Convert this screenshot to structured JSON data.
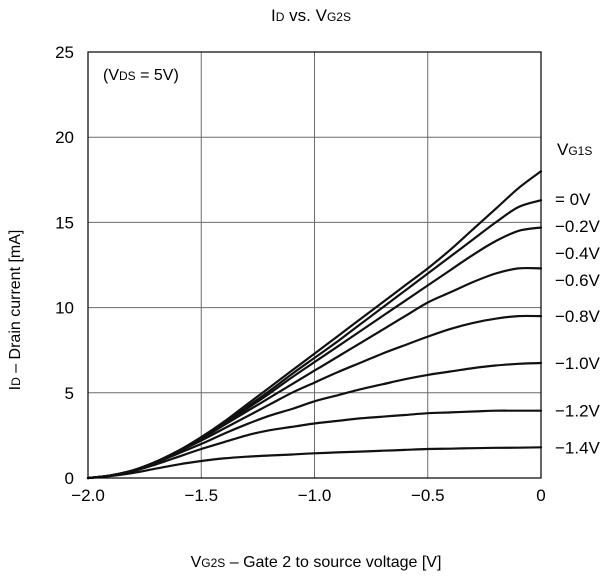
{
  "chart_data": {
    "type": "line",
    "title": {
      "main": "I",
      "sub": "D",
      "rest": " vs. V",
      "sub2": "G2S"
    },
    "annotation": {
      "open": "(V",
      "sub": "DS",
      "rest": " = 5V)"
    },
    "xlabel": {
      "main": "V",
      "sub": "G2S",
      "rest": " – Gate 2 to source voltage [V]"
    },
    "ylabel": {
      "main": "I",
      "sub": "D",
      "rest": " – Drain current [mA]"
    },
    "xlim": [
      -2.0,
      0
    ],
    "ylim": [
      0,
      25
    ],
    "xticks": [
      {
        "value": -2.0,
        "label": "−2.0"
      },
      {
        "value": -1.5,
        "label": "−1.5"
      },
      {
        "value": -1.0,
        "label": "−1.0"
      },
      {
        "value": -0.5,
        "label": "−0.5"
      },
      {
        "value": 0,
        "label": "0"
      }
    ],
    "yticks": [
      {
        "value": 0,
        "label": "0"
      },
      {
        "value": 5,
        "label": "5"
      },
      {
        "value": 10,
        "label": "10"
      },
      {
        "value": 15,
        "label": "15"
      },
      {
        "value": 20,
        "label": "20"
      },
      {
        "value": 25,
        "label": "25"
      }
    ],
    "grid": true,
    "legend_header": {
      "main": "V",
      "sub": "G1S"
    },
    "x": [
      -2.0,
      -1.9,
      -1.8,
      -1.7,
      -1.6,
      -1.5,
      -1.4,
      -1.3,
      -1.2,
      -1.1,
      -1.0,
      -0.9,
      -0.8,
      -0.7,
      -0.6,
      -0.5,
      -0.4,
      -0.3,
      -0.2,
      -0.1,
      0.0
    ],
    "series": [
      {
        "name": "= 0V",
        "values": [
          0.0,
          0.15,
          0.45,
          0.95,
          1.6,
          2.4,
          3.3,
          4.3,
          5.3,
          6.3,
          7.3,
          8.3,
          9.3,
          10.3,
          11.3,
          12.3,
          13.4,
          14.6,
          15.8,
          17.0,
          18.0
        ]
      },
      {
        "name": "−0.2V",
        "values": [
          0.0,
          0.15,
          0.45,
          0.95,
          1.6,
          2.35,
          3.2,
          4.15,
          5.1,
          6.1,
          7.05,
          8.0,
          9.0,
          10.0,
          11.0,
          12.0,
          13.0,
          14.0,
          15.0,
          15.9,
          16.3
        ]
      },
      {
        "name": "−0.4V",
        "values": [
          0.0,
          0.15,
          0.45,
          0.95,
          1.6,
          2.3,
          3.15,
          4.05,
          4.95,
          5.9,
          6.8,
          7.7,
          8.6,
          9.5,
          10.4,
          11.3,
          12.2,
          13.1,
          13.9,
          14.5,
          14.7
        ]
      },
      {
        "name": "−0.6V",
        "values": [
          0.0,
          0.15,
          0.45,
          0.95,
          1.6,
          2.3,
          3.1,
          3.9,
          4.7,
          5.5,
          6.3,
          7.1,
          7.9,
          8.7,
          9.5,
          10.3,
          10.9,
          11.5,
          12.0,
          12.3,
          12.3
        ]
      },
      {
        "name": "−0.8V",
        "values": [
          0.0,
          0.15,
          0.45,
          0.95,
          1.55,
          2.2,
          2.9,
          3.6,
          4.3,
          5.0,
          5.6,
          6.2,
          6.75,
          7.3,
          7.8,
          8.3,
          8.75,
          9.1,
          9.35,
          9.5,
          9.5
        ]
      },
      {
        "name": "−1.0V",
        "values": [
          0.0,
          0.15,
          0.45,
          0.9,
          1.45,
          2.0,
          2.6,
          3.15,
          3.65,
          4.05,
          4.5,
          4.85,
          5.2,
          5.5,
          5.8,
          6.05,
          6.25,
          6.45,
          6.6,
          6.7,
          6.75
        ]
      },
      {
        "name": "−1.2V",
        "values": [
          0.0,
          0.15,
          0.4,
          0.8,
          1.25,
          1.7,
          2.1,
          2.5,
          2.8,
          3.0,
          3.2,
          3.35,
          3.5,
          3.6,
          3.7,
          3.8,
          3.85,
          3.9,
          3.95,
          3.95,
          3.95
        ]
      },
      {
        "name": "−1.4V",
        "values": [
          0.0,
          0.12,
          0.3,
          0.55,
          0.8,
          1.0,
          1.15,
          1.25,
          1.32,
          1.38,
          1.45,
          1.5,
          1.55,
          1.6,
          1.65,
          1.7,
          1.72,
          1.75,
          1.77,
          1.78,
          1.8
        ]
      }
    ]
  }
}
